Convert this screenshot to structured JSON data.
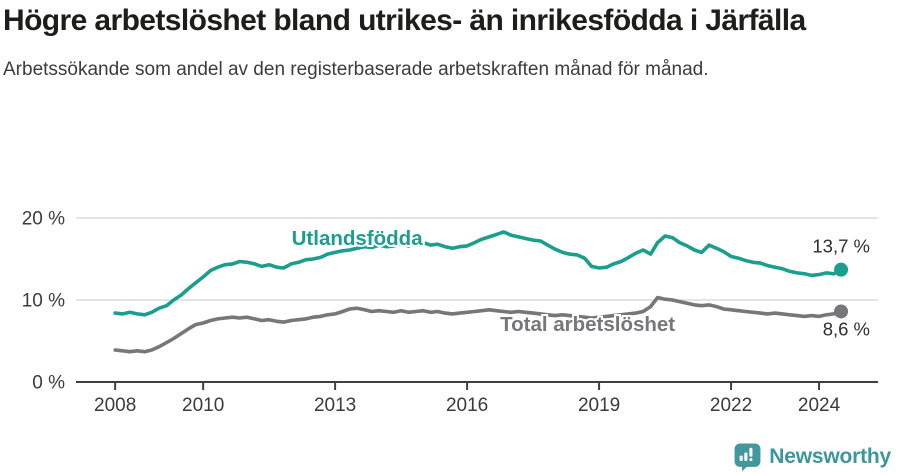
{
  "header": {
    "title": "Högre arbetslöshet bland utrikes- än inrikesfödda i Järfälla",
    "subtitle": "Arbetssökande som andel av den registerbaserade arbetskraften månad för månad."
  },
  "footer": {
    "brand": "Newsworthy",
    "logo_icon": "speech-bubble-with-bar-chart-and-exclamation",
    "brand_color": "#3e959b"
  },
  "colors": {
    "foreign_born_line": "#1a9e8e",
    "total_line": "#76767b",
    "gridline": "#d4d4d4",
    "axis": "#3f3f3f",
    "tick_label": "#3b3b3b",
    "value_label": "#2e2e2e"
  },
  "chart_data": {
    "type": "line",
    "title": "Högre arbetslöshet bland utrikes- än inrikesfödda i Järfälla",
    "subtitle": "Arbetssökande som andel av den registerbaserade arbetskraften månad för månad.",
    "xlabel": "",
    "ylabel": "",
    "grid": "horizontal-only",
    "legend_position": "inline-on-lines",
    "x_axis": {
      "ticks": [
        2008,
        2010,
        2013,
        2016,
        2019,
        2022,
        2024
      ],
      "range": [
        2007.11,
        2025.34
      ]
    },
    "y_axis": {
      "ticks": [
        0,
        10,
        20
      ],
      "tick_labels": [
        "0 %",
        "10 %",
        "20 %"
      ],
      "range": [
        0,
        20
      ]
    },
    "x": [
      2008,
      2008.17,
      2008.33,
      2008.5,
      2008.67,
      2008.83,
      2009,
      2009.17,
      2009.33,
      2009.5,
      2009.67,
      2009.83,
      2010,
      2010.17,
      2010.33,
      2010.5,
      2010.67,
      2010.83,
      2011,
      2011.17,
      2011.33,
      2011.5,
      2011.67,
      2011.83,
      2012,
      2012.17,
      2012.33,
      2012.5,
      2012.67,
      2012.83,
      2013,
      2013.17,
      2013.33,
      2013.5,
      2013.67,
      2013.83,
      2014,
      2014.17,
      2014.33,
      2014.5,
      2014.67,
      2014.83,
      2015,
      2015.17,
      2015.33,
      2015.5,
      2015.67,
      2015.83,
      2016,
      2016.17,
      2016.33,
      2016.5,
      2016.67,
      2016.83,
      2017,
      2017.17,
      2017.33,
      2017.5,
      2017.67,
      2017.83,
      2018,
      2018.17,
      2018.33,
      2018.5,
      2018.67,
      2018.83,
      2019,
      2019.17,
      2019.33,
      2019.5,
      2019.67,
      2019.83,
      2020,
      2020.17,
      2020.33,
      2020.5,
      2020.67,
      2020.83,
      2021,
      2021.17,
      2021.33,
      2021.5,
      2021.67,
      2021.83,
      2022,
      2022.17,
      2022.33,
      2022.5,
      2022.67,
      2022.83,
      2023,
      2023.17,
      2023.33,
      2023.5,
      2023.67,
      2023.83,
      2024,
      2024.17,
      2024.33,
      2024.5
    ],
    "series": [
      {
        "name": "Utlandsfödda",
        "color": "#1a9e8e",
        "end_value_label": "13,7 %",
        "end_label_dy": -17,
        "name_label": {
          "x": 2013.5,
          "y": 16.7,
          "anchor": "middle"
        },
        "values": [
          8.4,
          8.3,
          8.5,
          8.3,
          8.2,
          8.5,
          9.0,
          9.3,
          10.0,
          10.6,
          11.4,
          12.1,
          12.8,
          13.6,
          14.0,
          14.3,
          14.4,
          14.7,
          14.6,
          14.4,
          14.1,
          14.3,
          14.0,
          13.9,
          14.4,
          14.6,
          14.9,
          15.0,
          15.2,
          15.6,
          15.8,
          16.0,
          16.1,
          16.3,
          16.5,
          16.4,
          16.7,
          16.5,
          16.6,
          16.8,
          16.6,
          16.9,
          17.0,
          16.7,
          16.8,
          16.5,
          16.3,
          16.5,
          16.6,
          17.0,
          17.4,
          17.7,
          18.0,
          18.3,
          17.9,
          17.7,
          17.5,
          17.3,
          17.2,
          16.7,
          16.2,
          15.8,
          15.6,
          15.5,
          15.1,
          14.1,
          13.9,
          14.0,
          14.4,
          14.7,
          15.2,
          15.7,
          16.1,
          15.6,
          17.0,
          17.8,
          17.6,
          17.0,
          16.6,
          16.1,
          15.8,
          16.7,
          16.3,
          15.9,
          15.3,
          15.1,
          14.8,
          14.6,
          14.5,
          14.2,
          14.0,
          13.8,
          13.5,
          13.3,
          13.2,
          13.0,
          13.1,
          13.3,
          13.2,
          13.7
        ]
      },
      {
        "name": "Total arbetslöshet",
        "color": "#76767b",
        "end_value_label": "8,6 %",
        "end_label_dy": 24,
        "name_label": {
          "x": 2016.75,
          "y": 6.2,
          "anchor": "start"
        },
        "values": [
          3.9,
          3.8,
          3.7,
          3.8,
          3.7,
          3.9,
          4.3,
          4.8,
          5.3,
          5.9,
          6.5,
          7.0,
          7.2,
          7.5,
          7.7,
          7.8,
          7.9,
          7.8,
          7.9,
          7.7,
          7.5,
          7.6,
          7.4,
          7.3,
          7.5,
          7.6,
          7.7,
          7.9,
          8.0,
          8.2,
          8.3,
          8.6,
          8.9,
          9.0,
          8.8,
          8.6,
          8.7,
          8.6,
          8.5,
          8.7,
          8.5,
          8.6,
          8.7,
          8.5,
          8.6,
          8.4,
          8.3,
          8.4,
          8.5,
          8.6,
          8.7,
          8.8,
          8.7,
          8.6,
          8.5,
          8.6,
          8.5,
          8.4,
          8.3,
          8.2,
          8.1,
          8.2,
          8.1,
          8.0,
          7.9,
          7.8,
          7.9,
          8.0,
          8.1,
          8.2,
          8.3,
          8.4,
          8.6,
          9.2,
          10.3,
          10.1,
          10.0,
          9.8,
          9.6,
          9.4,
          9.3,
          9.4,
          9.2,
          8.9,
          8.8,
          8.7,
          8.6,
          8.5,
          8.4,
          8.3,
          8.4,
          8.3,
          8.2,
          8.1,
          8.0,
          8.1,
          8.0,
          8.2,
          8.3,
          8.6
        ]
      }
    ]
  }
}
